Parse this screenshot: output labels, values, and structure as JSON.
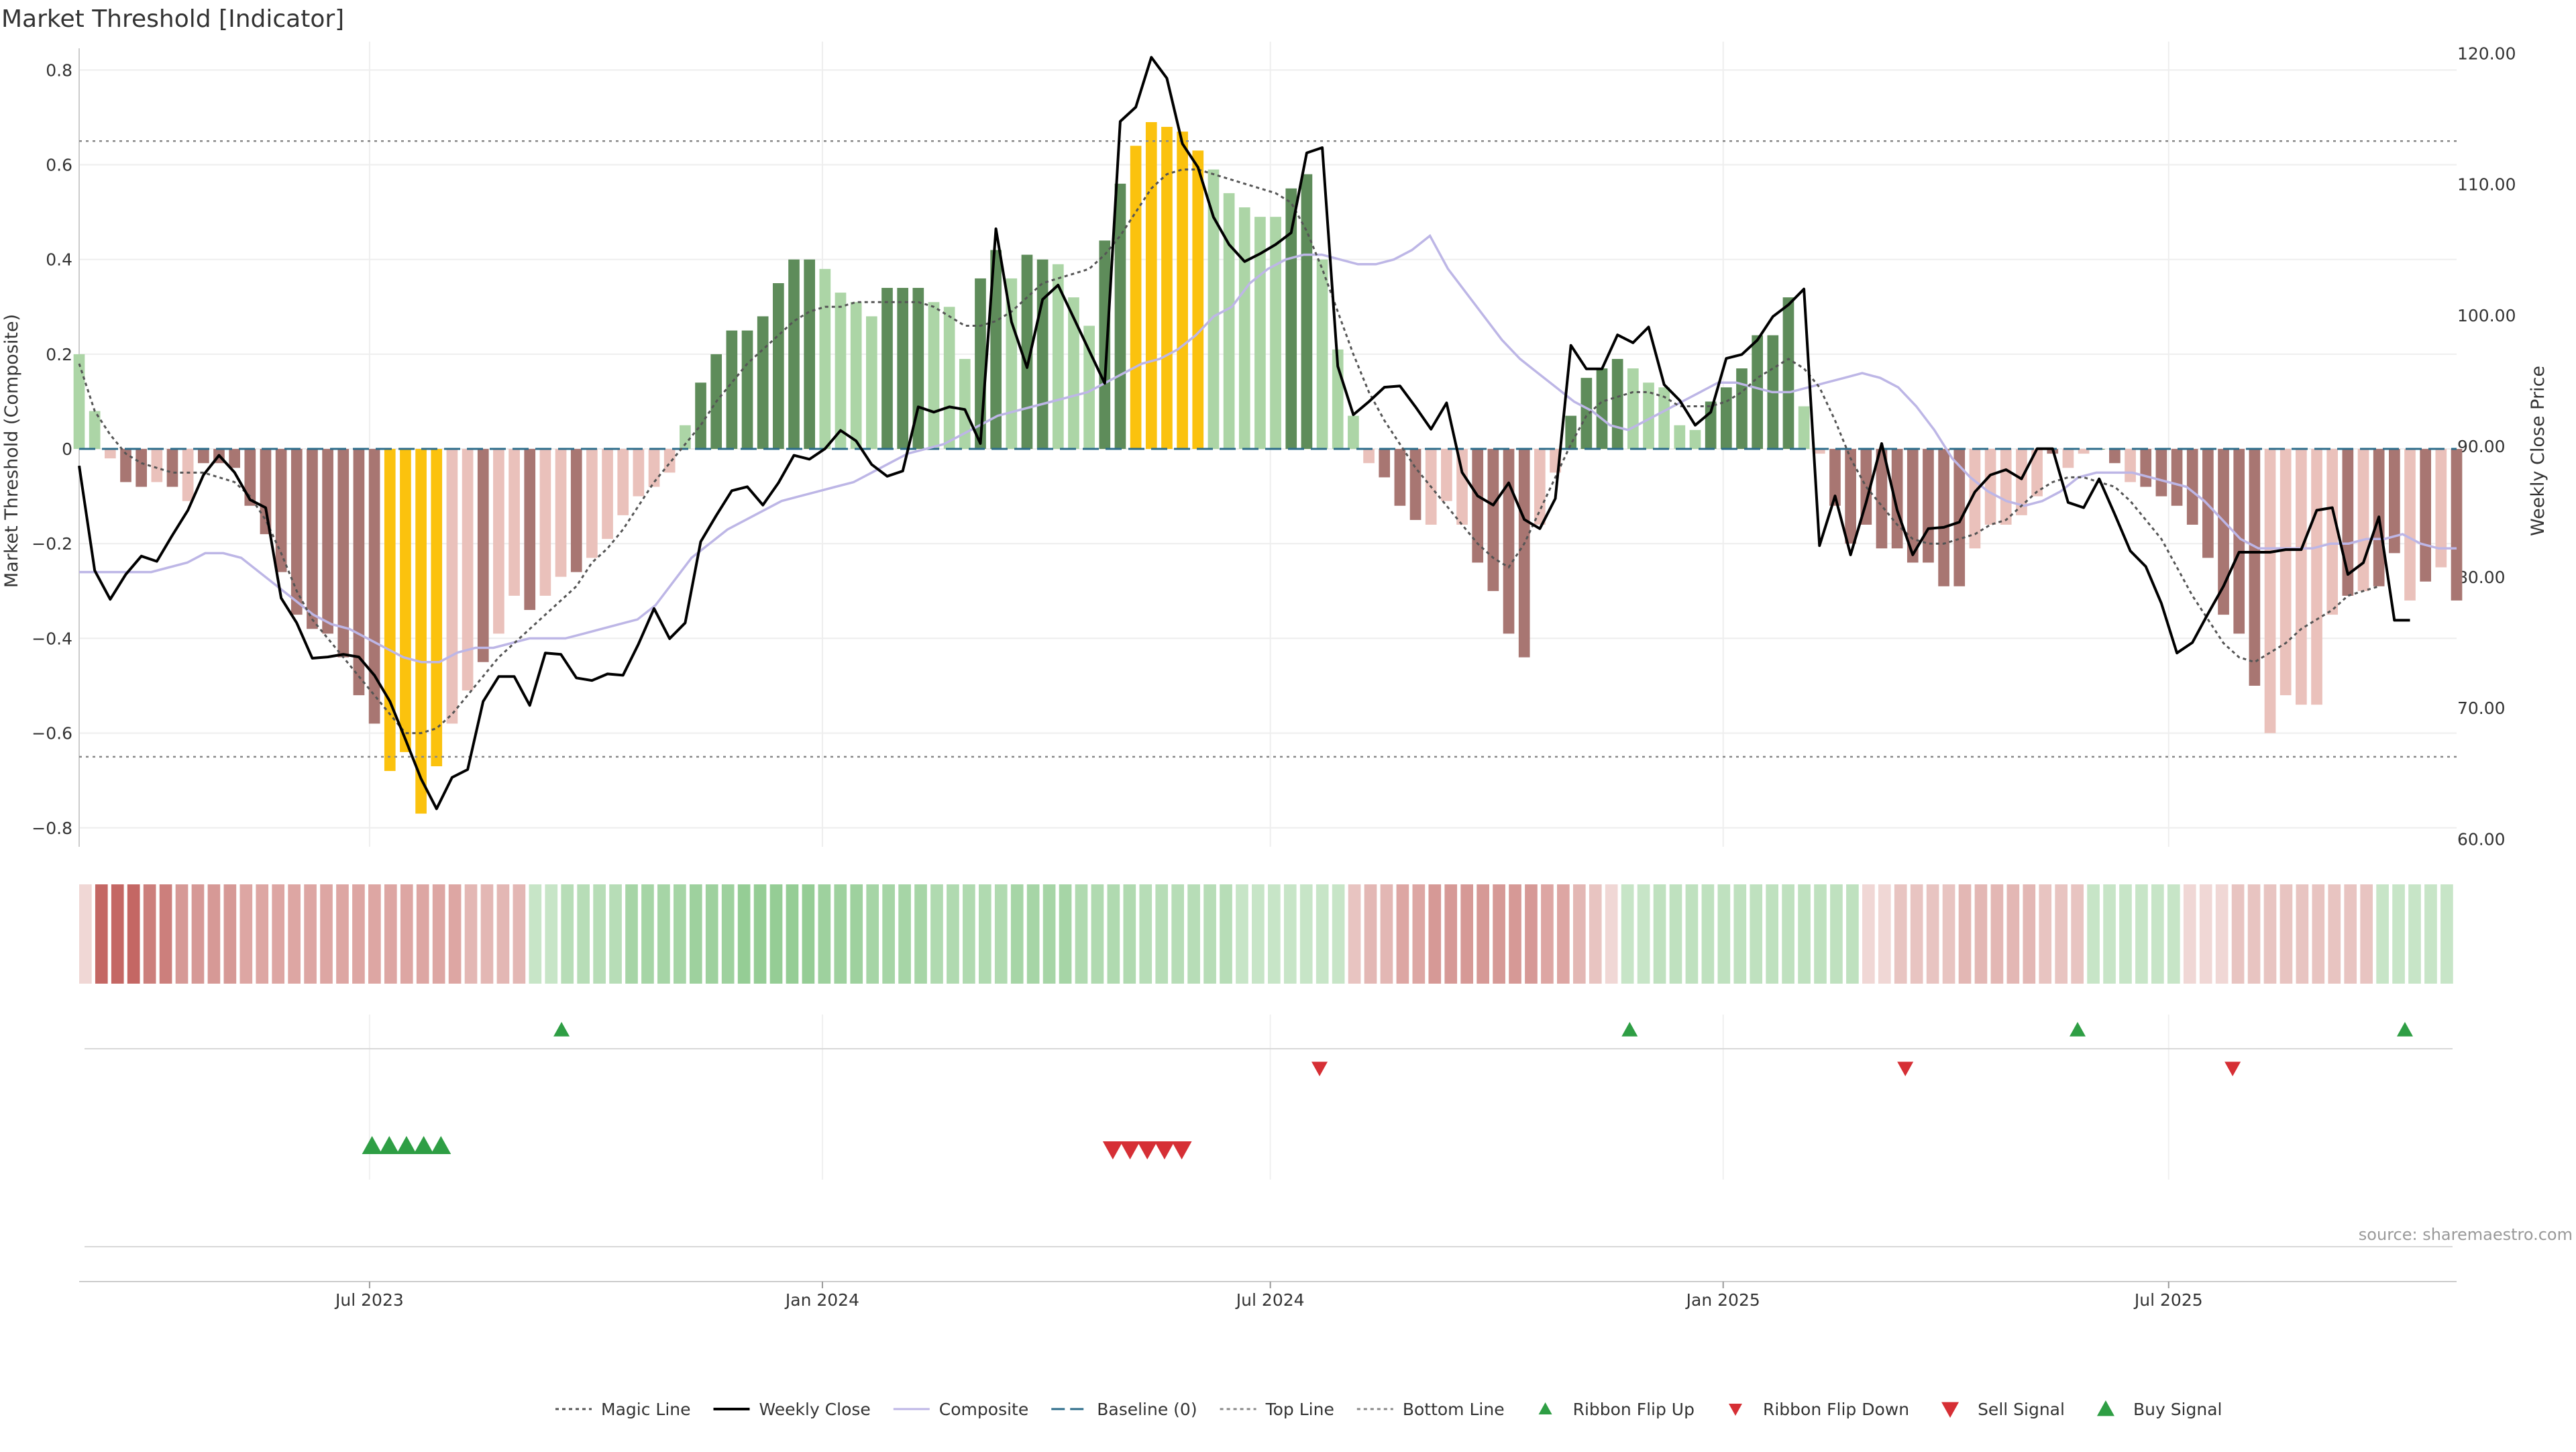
{
  "title": "Market Threshold [Indicator]",
  "source": "source: sharemaestro.com",
  "colors": {
    "green_strong": "#5e8c5a",
    "green_light": "#acd5a6",
    "red_strong": "#a87672",
    "red_light": "#eac1bb",
    "extreme": "#fbc20e",
    "weekly_close": "#000000",
    "magic_line": "#555555",
    "composite": "#bdb6e6",
    "baseline": "#2c6c8a",
    "band_line": "#888888",
    "up_marker": "#2e9e44",
    "down_marker": "#d62f35",
    "grid": "#eeeeee"
  },
  "legend": [
    {
      "label": "Magic Line",
      "kind": "line-dotted",
      "color": "#555555"
    },
    {
      "label": "Weekly Close",
      "kind": "line",
      "color": "#000000"
    },
    {
      "label": "Composite",
      "kind": "line",
      "color": "#bdb6e6"
    },
    {
      "label": "Baseline (0)",
      "kind": "line-dashed",
      "color": "#2c6c8a"
    },
    {
      "label": "Top Line",
      "kind": "line-dotted",
      "color": "#888888"
    },
    {
      "label": "Bottom Line",
      "kind": "line-dotted",
      "color": "#888888"
    },
    {
      "label": "Ribbon Flip Up",
      "kind": "triangle-up-small",
      "color": "#2e9e44"
    },
    {
      "label": "Ribbon Flip Down",
      "kind": "triangle-down-small",
      "color": "#d62f35"
    },
    {
      "label": "Sell Signal",
      "kind": "triangle-down",
      "color": "#d62f35"
    },
    {
      "label": "Buy Signal",
      "kind": "triangle-up",
      "color": "#2e9e44"
    }
  ],
  "chart_data": {
    "type": "bar",
    "title": "Market Threshold [Indicator]",
    "ylabel": "Market Threshold (Composite)",
    "y2label": "Weekly Close Price",
    "ylim": [
      -0.84,
      0.86
    ],
    "y2lim": [
      59.4,
      120.9
    ],
    "yticks": [
      -0.8,
      -0.6,
      -0.4,
      -0.2,
      0,
      0.2,
      0.4,
      0.6,
      0.8
    ],
    "ytick_labels": [
      "−0.8",
      "−0.6",
      "−0.4",
      "−0.2",
      "0",
      "0.2",
      "0.4",
      "0.6",
      "0.8"
    ],
    "y2ticks": [
      60,
      70,
      80,
      90,
      100,
      110,
      120
    ],
    "y2tick_labels": [
      "60.00",
      "70.00",
      "80.00",
      "90.00",
      "100.00",
      "110.00",
      "120.00"
    ],
    "x_start": "2023-03-05",
    "x_end": "2025-10-26",
    "xticks": [
      "2023-07-01",
      "2024-01-01",
      "2024-07-01",
      "2025-01-01",
      "2025-07-01"
    ],
    "xtick_labels": [
      "Jul 2023",
      "Jan 2024",
      "Jul 2024",
      "Jan 2025",
      "Jul 2025"
    ],
    "top_line": 0.65,
    "bottom_line": -0.65,
    "baseline": 0,
    "grid": true,
    "legend_position": "bottom",
    "composite_bars": [
      0.2,
      0.08,
      -0.02,
      -0.07,
      -0.08,
      -0.07,
      -0.08,
      -0.11,
      -0.03,
      -0.03,
      -0.04,
      -0.12,
      -0.18,
      -0.26,
      -0.35,
      -0.38,
      -0.39,
      -0.44,
      -0.52,
      -0.58,
      -0.68,
      -0.64,
      -0.77,
      -0.67,
      -0.58,
      -0.51,
      -0.45,
      -0.39,
      -0.31,
      -0.34,
      -0.31,
      -0.27,
      -0.26,
      -0.23,
      -0.19,
      -0.14,
      -0.1,
      -0.08,
      -0.05,
      0.05,
      0.14,
      0.2,
      0.25,
      0.25,
      0.28,
      0.35,
      0.4,
      0.4,
      0.38,
      0.33,
      0.31,
      0.28,
      0.34,
      0.34,
      0.34,
      0.31,
      0.3,
      0.19,
      0.36,
      0.42,
      0.36,
      0.41,
      0.4,
      0.39,
      0.32,
      0.26,
      0.44,
      0.56,
      0.64,
      0.69,
      0.68,
      0.67,
      0.63,
      0.59,
      0.54,
      0.51,
      0.49,
      0.49,
      0.55,
      0.58,
      0.4,
      0.21,
      0.07,
      -0.03,
      -0.06,
      -0.12,
      -0.15,
      -0.16,
      -0.11,
      -0.16,
      -0.24,
      -0.3,
      -0.39,
      -0.44,
      -0.16,
      -0.05,
      0.07,
      0.15,
      0.17,
      0.19,
      0.17,
      0.14,
      0.13,
      0.05,
      0.04,
      0.1,
      0.13,
      0.17,
      0.24,
      0.24,
      0.32,
      0.09,
      -0.01,
      -0.12,
      -0.2,
      -0.16,
      -0.21,
      -0.21,
      -0.24,
      -0.24,
      -0.29,
      -0.29,
      -0.21,
      -0.16,
      -0.16,
      -0.14,
      -0.1,
      -0.01,
      -0.04,
      -0.01,
      0,
      -0.03,
      -0.07,
      -0.08,
      -0.1,
      -0.12,
      -0.16,
      -0.23,
      -0.35,
      -0.39,
      -0.5,
      -0.6,
      -0.52,
      -0.54,
      -0.54,
      -0.35,
      -0.31,
      -0.3,
      -0.29,
      -0.22,
      -0.32,
      -0.28,
      -0.25,
      -0.32
    ],
    "bar_tones": [
      "L",
      "L",
      "R",
      "D",
      "D",
      "L",
      "D",
      "L",
      "D",
      "D",
      "D",
      "D",
      "D",
      "D",
      "D",
      "D",
      "D",
      "D",
      "D",
      "D",
      "Y",
      "Y",
      "Y",
      "Y",
      "L",
      "L",
      "D",
      "L",
      "L",
      "D",
      "L",
      "L",
      "D",
      "L",
      "L",
      "L",
      "L",
      "L",
      "L",
      "L",
      "D",
      "D",
      "D",
      "D",
      "D",
      "D",
      "D",
      "D",
      "L",
      "L",
      "L",
      "L",
      "D",
      "D",
      "D",
      "L",
      "L",
      "L",
      "D",
      "D",
      "L",
      "D",
      "D",
      "L",
      "L",
      "L",
      "D",
      "D",
      "Y",
      "Y",
      "Y",
      "Y",
      "Y",
      "L",
      "L",
      "L",
      "L",
      "L",
      "D",
      "D",
      "L",
      "L",
      "L",
      "L",
      "D",
      "D",
      "D",
      "L",
      "L",
      "L",
      "D",
      "D",
      "D",
      "D",
      "L",
      "L",
      "D",
      "D",
      "D",
      "D",
      "L",
      "L",
      "L",
      "L",
      "L",
      "D",
      "D",
      "D",
      "D",
      "D",
      "D",
      "L",
      "L",
      "D",
      "D",
      "D",
      "D",
      "D",
      "D",
      "D",
      "D",
      "D",
      "L",
      "L",
      "L",
      "L",
      "L",
      "D",
      "L",
      "L",
      "D",
      "D",
      "L",
      "D",
      "D",
      "D",
      "D",
      "D",
      "D",
      "D",
      "D",
      "L",
      "L",
      "L",
      "L",
      "L",
      "D",
      "L",
      "D",
      "D",
      "L",
      "D",
      "L",
      "D"
    ],
    "weekly_close": [
      88.5,
      80.5,
      78.3,
      80.2,
      81.6,
      81.2,
      83.2,
      85.1,
      87.8,
      89.3,
      88,
      85.9,
      85.3,
      78.4,
      76.5,
      73.8,
      73.9,
      74.1,
      73.9,
      72.5,
      70.5,
      67.6,
      64.6,
      62.3,
      64.7,
      65.3,
      70.5,
      72.4,
      72.4,
      70.2,
      74.2,
      74.1,
      72.3,
      72.1,
      72.6,
      72.5,
      74.9,
      77.6,
      75.3,
      76.5,
      82.7,
      84.7,
      86.6,
      86.9,
      85.5,
      87.2,
      89.3,
      89,
      89.8,
      91.2,
      90.4,
      88.6,
      87.7,
      88.1,
      93,
      92.6,
      93,
      92.8,
      90.2,
      106.6,
      99.5,
      96,
      101.2,
      102.3,
      99.8,
      97.3,
      94.8,
      114.8,
      115.9,
      119.7,
      118.1,
      113.1,
      111.3,
      107.5,
      105.4,
      104.1,
      104.7,
      105.4,
      106.3,
      112.4,
      112.8,
      96.1,
      92.4,
      93.4,
      94.5,
      94.6,
      93,
      91.3,
      93.3,
      88,
      86.2,
      85.5,
      87.2,
      84.4,
      83.7,
      86,
      97.7,
      95.9,
      95.9,
      98.5,
      97.9,
      99.1,
      94.7,
      93.5,
      91.6,
      92.6,
      96.7,
      97,
      98.1,
      99.9,
      100.8,
      102,
      82.4,
      86.2,
      81.7,
      85.7,
      90.2,
      85.1,
      81.7,
      83.7,
      83.8,
      84.2,
      86.5,
      87.8,
      88.2,
      87.5,
      89.8,
      89.8,
      85.7,
      85.3,
      87.5,
      84.8,
      82,
      80.8,
      78,
      74.2,
      75,
      77.2,
      79.3,
      81.9,
      81.9,
      81.9,
      82.1,
      82.1,
      85.1,
      85.3,
      80.2,
      81.1,
      84.6,
      76.7,
      76.7
    ],
    "magic_line": [
      0.18,
      0.08,
      0.03,
      -0.01,
      -0.03,
      -0.04,
      -0.05,
      -0.05,
      -0.05,
      -0.06,
      -0.07,
      -0.1,
      -0.15,
      -0.22,
      -0.3,
      -0.36,
      -0.4,
      -0.44,
      -0.48,
      -0.52,
      -0.56,
      -0.6,
      -0.6,
      -0.59,
      -0.56,
      -0.52,
      -0.48,
      -0.44,
      -0.41,
      -0.38,
      -0.35,
      -0.32,
      -0.29,
      -0.24,
      -0.21,
      -0.17,
      -0.12,
      -0.07,
      -0.03,
      0.01,
      0.05,
      0.1,
      0.14,
      0.18,
      0.21,
      0.24,
      0.27,
      0.29,
      0.3,
      0.3,
      0.31,
      0.31,
      0.31,
      0.31,
      0.31,
      0.3,
      0.28,
      0.26,
      0.26,
      0.27,
      0.29,
      0.32,
      0.35,
      0.36,
      0.37,
      0.38,
      0.41,
      0.45,
      0.5,
      0.55,
      0.58,
      0.59,
      0.59,
      0.58,
      0.57,
      0.56,
      0.55,
      0.54,
      0.52,
      0.46,
      0.38,
      0.29,
      0.2,
      0.12,
      0.06,
      0.01,
      -0.04,
      -0.08,
      -0.12,
      -0.16,
      -0.2,
      -0.23,
      -0.25,
      -0.2,
      -0.13,
      -0.06,
      0.01,
      0.07,
      0.1,
      0.11,
      0.12,
      0.12,
      0.11,
      0.09,
      0.09,
      0.09,
      0.1,
      0.12,
      0.15,
      0.17,
      0.19,
      0.17,
      0.13,
      0.06,
      -0.02,
      -0.08,
      -0.12,
      -0.16,
      -0.19,
      -0.2,
      -0.2,
      -0.19,
      -0.18,
      -0.16,
      -0.15,
      -0.12,
      -0.09,
      -0.07,
      -0.06,
      -0.06,
      -0.07,
      -0.08,
      -0.11,
      -0.15,
      -0.19,
      -0.25,
      -0.31,
      -0.36,
      -0.41,
      -0.44,
      -0.45,
      -0.43,
      -0.41,
      -0.38,
      -0.36,
      -0.34,
      -0.31,
      -0.3,
      -0.29
    ],
    "composite_line": [
      -0.26,
      -0.26,
      -0.26,
      -0.26,
      -0.26,
      -0.25,
      -0.24,
      -0.22,
      -0.22,
      -0.23,
      -0.26,
      -0.29,
      -0.32,
      -0.35,
      -0.37,
      -0.38,
      -0.4,
      -0.42,
      -0.44,
      -0.45,
      -0.45,
      -0.43,
      -0.42,
      -0.42,
      -0.41,
      -0.4,
      -0.4,
      -0.4,
      -0.39,
      -0.38,
      -0.37,
      -0.36,
      -0.33,
      -0.28,
      -0.23,
      -0.2,
      -0.17,
      -0.15,
      -0.13,
      -0.11,
      -0.1,
      -0.09,
      -0.08,
      -0.07,
      -0.05,
      -0.03,
      -0.01,
      0,
      0.01,
      0.03,
      0.05,
      0.07,
      0.08,
      0.09,
      0.1,
      0.11,
      0.12,
      0.14,
      0.16,
      0.18,
      0.19,
      0.21,
      0.24,
      0.28,
      0.3,
      0.35,
      0.38,
      0.4,
      0.41,
      0.41,
      0.4,
      0.39,
      0.39,
      0.4,
      0.42,
      0.45,
      0.38,
      0.33,
      0.28,
      0.23,
      0.19,
      0.16,
      0.13,
      0.1,
      0.08,
      0.05,
      0.04,
      0.06,
      0.08,
      0.1,
      0.12,
      0.14,
      0.14,
      0.13,
      0.12,
      0.12,
      0.13,
      0.14,
      0.15,
      0.16,
      0.15,
      0.13,
      0.09,
      0.04,
      -0.02,
      -0.06,
      -0.09,
      -0.11,
      -0.12,
      -0.11,
      -0.09,
      -0.06,
      -0.05,
      -0.05,
      -0.05,
      -0.06,
      -0.07,
      -0.08,
      -0.11,
      -0.15,
      -0.19,
      -0.21,
      -0.21,
      -0.21,
      -0.21,
      -0.2,
      -0.2,
      -0.19,
      -0.19,
      -0.18,
      -0.2,
      -0.21,
      -0.21
    ],
    "ribbon_tones": [
      "#f0d7d5",
      "#c46764",
      "#c46764",
      "#c46764",
      "#cc7f7c",
      "#cc7f7c",
      "#d69996",
      "#d69996",
      "#d69996",
      "#d69996",
      "#dda6a3",
      "#dda6a3",
      "#dda6a3",
      "#dda6a3",
      "#dda6a3",
      "#dda6a3",
      "#dda6a3",
      "#dda6a3",
      "#dda6a3",
      "#dda6a3",
      "#dda6a3",
      "#dda6a3",
      "#dda6a3",
      "#dda6a3",
      "#e3b7b4",
      "#e3b7b4",
      "#e3b7b4",
      "#e3b7b4",
      "#c7e5c7",
      "#c7e5c7",
      "#b7ddb7",
      "#b7ddb7",
      "#b7ddb7",
      "#b7ddb7",
      "#a6d5a6",
      "#a6d5a6",
      "#a6d5a6",
      "#a6d5a6",
      "#9ed19e",
      "#9ed19e",
      "#9ed19e",
      "#95cd95",
      "#95cd95",
      "#95cd95",
      "#95cd95",
      "#95cd95",
      "#9ed19e",
      "#9ed19e",
      "#9ed19e",
      "#a6d5a6",
      "#a6d5a6",
      "#a6d5a6",
      "#a6d5a6",
      "#b0dab0",
      "#b0dab0",
      "#b0dab0",
      "#b0dab0",
      "#b0dab0",
      "#a6d5a6",
      "#a6d5a6",
      "#a6d5a6",
      "#a6d5a6",
      "#b0dab0",
      "#b0dab0",
      "#b0dab0",
      "#b0dab0",
      "#b7ddb7",
      "#b7ddb7",
      "#b7ddb7",
      "#b7ddb7",
      "#b7ddb7",
      "#b7ddb7",
      "#c7e5c7",
      "#c7e5c7",
      "#c7e5c7",
      "#c7e5c7",
      "#c7e5c7",
      "#c7e5c7",
      "#c7e5c7",
      "#e8c4c1",
      "#e3b7b4",
      "#e3b7b4",
      "#dda6a3",
      "#dda6a3",
      "#d69996",
      "#d69996",
      "#d69996",
      "#d69996",
      "#d69996",
      "#d69996",
      "#d69996",
      "#dda6a3",
      "#dda6a3",
      "#e3b7b4",
      "#e8c4c1",
      "#f0d7d5",
      "#c7e5c7",
      "#c7e5c7",
      "#bfe1bf",
      "#bfe1bf",
      "#bfe1bf",
      "#bfe1bf",
      "#bfe1bf",
      "#bfe1bf",
      "#bfe1bf",
      "#bfe1bf",
      "#bfe1bf",
      "#bfe1bf",
      "#bfe1bf",
      "#bfe1bf",
      "#bfe1bf",
      "#f0d7d5",
      "#f0d7d5",
      "#e8c4c1",
      "#e8c4c1",
      "#e8c4c1",
      "#e8c4c1",
      "#e3b7b4",
      "#e3b7b4",
      "#e3b7b4",
      "#e3b7b4",
      "#e3b7b4",
      "#e8c4c1",
      "#e8c4c1",
      "#e8c4c1",
      "#c7e5c7",
      "#c7e5c7",
      "#c7e5c7",
      "#c7e5c7",
      "#c7e5c7",
      "#c7e5c7",
      "#f0d7d5",
      "#f0d7d5",
      "#f0d7d5",
      "#e8c4c1",
      "#e8c4c1",
      "#e8c4c1",
      "#e8c4c1",
      "#e8c4c1",
      "#e8c4c1",
      "#e8c4c1",
      "#e8c4c1",
      "#e8c4c1",
      "#c7e5c7",
      "#c7e5c7",
      "#c7e5c7",
      "#c7e5c7",
      "#c7e5c7"
    ],
    "ribbon_flip_up": [
      "2023-09-17",
      "2024-11-24",
      "2025-05-25",
      "2025-10-05"
    ],
    "ribbon_flip_down": [
      "2024-07-21",
      "2025-03-16",
      "2025-07-27"
    ],
    "buy_signal": [
      "2023-07-02",
      "2023-07-09",
      "2023-07-16",
      "2023-07-23",
      "2023-07-30"
    ],
    "sell_signal": [
      "2024-04-28",
      "2024-05-05",
      "2024-05-12",
      "2024-05-19",
      "2024-05-26"
    ]
  }
}
